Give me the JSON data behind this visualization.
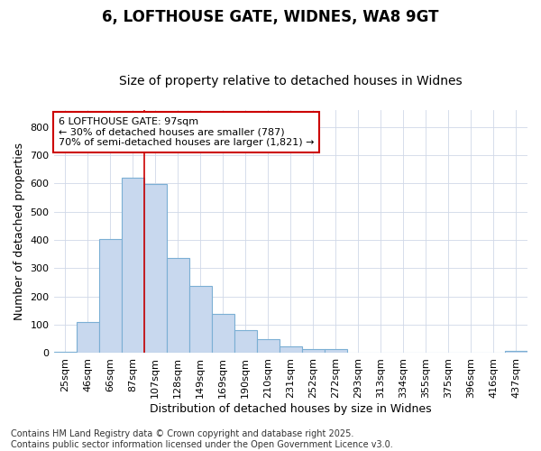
{
  "title": "6, LOFTHOUSE GATE, WIDNES, WA8 9GT",
  "subtitle": "Size of property relative to detached houses in Widnes",
  "xlabel": "Distribution of detached houses by size in Widnes",
  "ylabel": "Number of detached properties",
  "bar_color": "#c8d8ee",
  "bar_edge_color": "#7bafd4",
  "categories": [
    "25sqm",
    "46sqm",
    "66sqm",
    "87sqm",
    "107sqm",
    "128sqm",
    "149sqm",
    "169sqm",
    "190sqm",
    "210sqm",
    "231sqm",
    "252sqm",
    "272sqm",
    "293sqm",
    "313sqm",
    "334sqm",
    "355sqm",
    "375sqm",
    "396sqm",
    "416sqm",
    "437sqm"
  ],
  "values": [
    5,
    110,
    403,
    620,
    598,
    335,
    238,
    138,
    80,
    50,
    25,
    15,
    15,
    0,
    0,
    0,
    0,
    0,
    0,
    0,
    8
  ],
  "ylim": [
    0,
    860
  ],
  "yticks": [
    0,
    100,
    200,
    300,
    400,
    500,
    600,
    700,
    800
  ],
  "vline_x": 3.5,
  "vline_color": "#cc0000",
  "annotation_text": "6 LOFTHOUSE GATE: 97sqm\n← 30% of detached houses are smaller (787)\n70% of semi-detached houses are larger (1,821) →",
  "annotation_box_color": "#ffffff",
  "annotation_box_edge": "#cc0000",
  "footer": "Contains HM Land Registry data © Crown copyright and database right 2025.\nContains public sector information licensed under the Open Government Licence v3.0.",
  "bg_color": "#ffffff",
  "plot_bg_color": "#ffffff",
  "grid_color": "#d0d8e8",
  "title_fontsize": 12,
  "subtitle_fontsize": 10,
  "tick_fontsize": 8,
  "ylabel_fontsize": 9,
  "xlabel_fontsize": 9,
  "footer_fontsize": 7,
  "annotation_fontsize": 8
}
